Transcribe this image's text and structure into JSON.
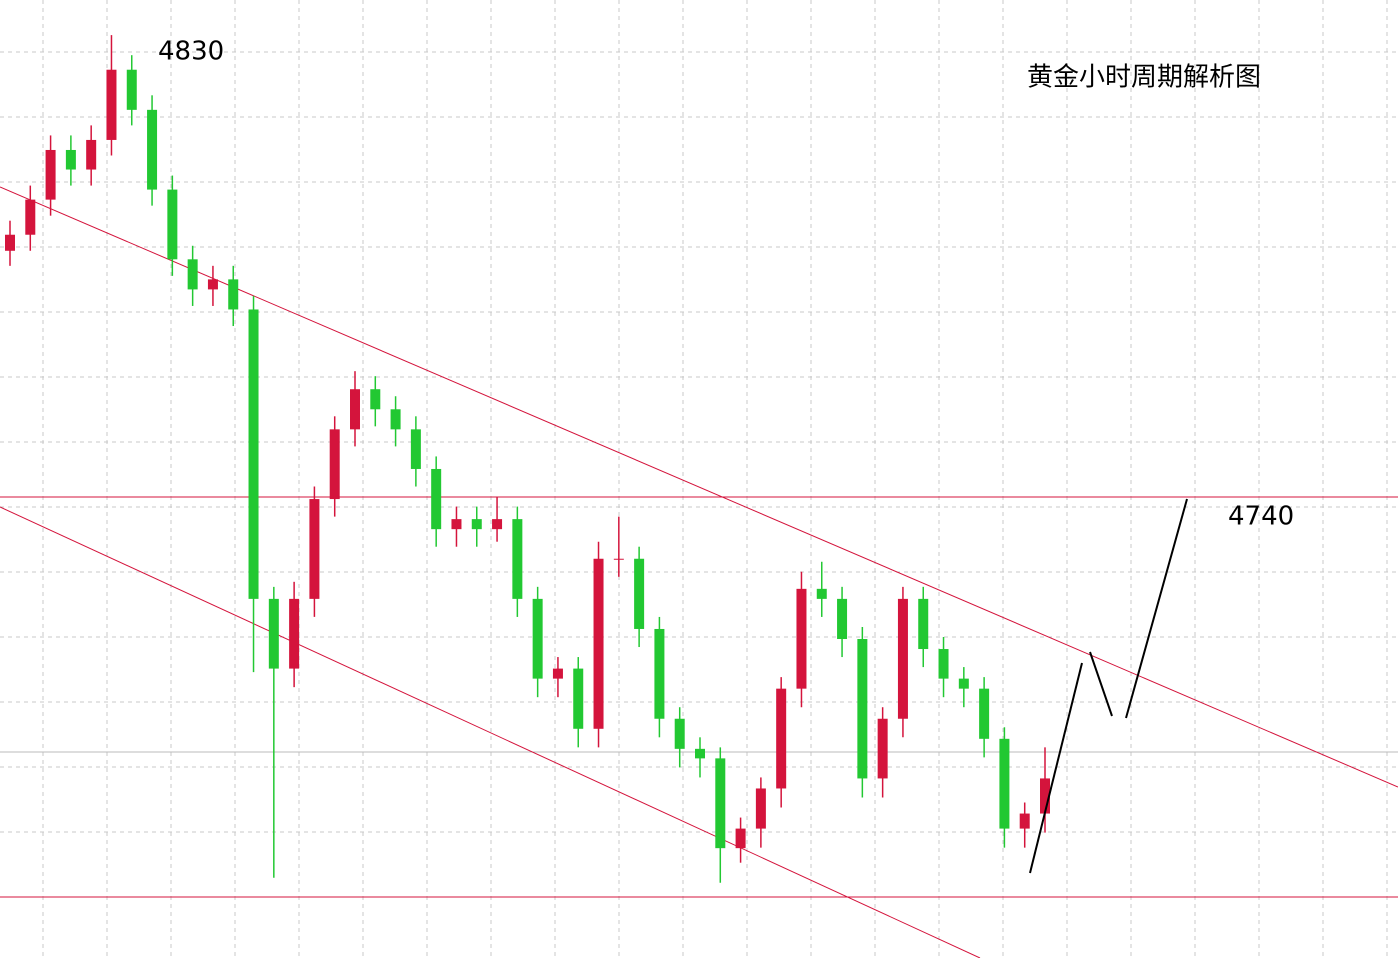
{
  "chart_data": {
    "type": "candlestick",
    "title": "黄金小时周期解析图",
    "annotations": [
      "4830",
      "4740"
    ],
    "up_color": "#d4143c",
    "down_color": "#22c832",
    "ylim": [
      4648,
      4839
    ],
    "open": [
      4789.0,
      4792.2,
      4799.2,
      4809.1,
      4805.2,
      4811.1,
      4825.1,
      4817.1,
      4801.2,
      4787.3,
      4781.3,
      4783.3,
      4777.3,
      4719.6,
      4705.7,
      4719.6,
      4739.5,
      4753.4,
      4761.4,
      4757.4,
      4753.4,
      4745.5,
      4733.5,
      4735.5,
      4733.5,
      4735.5,
      4719.6,
      4703.7,
      4705.7,
      4693.7,
      4727.6,
      4727.6,
      4713.6,
      4695.7,
      4689.7,
      4687.8,
      4669.9,
      4673.8,
      4681.8,
      4701.7,
      4721.6,
      4719.6,
      4711.6,
      4683.8,
      4695.7,
      4719.6,
      4709.6,
      4703.7,
      4701.7,
      4691.7,
      4673.8,
      4676.8
    ],
    "high": [
      4795,
      4802,
      4812,
      4812,
      4814,
      4832,
      4828,
      4820,
      4804,
      4790,
      4786,
      4786,
      4780,
      4722,
      4723,
      4742,
      4756,
      4765,
      4764,
      4760,
      4756,
      4748,
      4738,
      4738,
      4740,
      4738,
      4722,
      4708,
      4708,
      4731,
      4736,
      4730,
      4716,
      4698,
      4692,
      4690,
      4676,
      4684,
      4704,
      4725,
      4727,
      4722,
      4714,
      4698,
      4722,
      4722,
      4712,
      4706,
      4704,
      4694,
      4679,
      4690
    ],
    "low": [
      4786,
      4789,
      4796,
      4802,
      4802,
      4808,
      4814,
      4798,
      4784,
      4778,
      4778,
      4774,
      4705,
      4664,
      4702,
      4716,
      4736,
      4750,
      4754,
      4750,
      4742,
      4730,
      4730,
      4730,
      4731,
      4716,
      4700,
      4700,
      4690,
      4690,
      4724,
      4710,
      4692,
      4686,
      4684,
      4663,
      4667,
      4670,
      4678,
      4698,
      4716,
      4708,
      4680,
      4680,
      4692,
      4706,
      4700,
      4698,
      4688,
      4670,
      4670,
      4673
    ],
    "close": [
      4792.2,
      4799.2,
      4809.1,
      4805.2,
      4811.1,
      4825.1,
      4817.1,
      4801.2,
      4787.3,
      4781.3,
      4783.3,
      4777.3,
      4719.6,
      4705.7,
      4719.6,
      4739.5,
      4753.4,
      4761.4,
      4757.4,
      4753.4,
      4745.5,
      4733.5,
      4735.5,
      4733.5,
      4735.5,
      4719.6,
      4703.7,
      4705.7,
      4693.7,
      4727.6,
      4727.6,
      4713.6,
      4695.7,
      4689.7,
      4687.8,
      4669.9,
      4673.8,
      4681.8,
      4701.7,
      4721.6,
      4719.6,
      4711.6,
      4683.8,
      4695.7,
      4719.6,
      4709.6,
      4703.7,
      4701.7,
      4691.7,
      4673.8,
      4676.8,
      4683.8
    ]
  }
}
